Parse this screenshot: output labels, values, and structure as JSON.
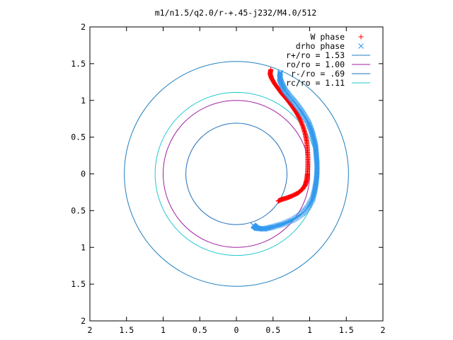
{
  "chart_data": {
    "type": "scatter",
    "title": "m1/n1.5/q2.0/r-+.45-j232/M4.0/512",
    "xlabel": "",
    "ylabel": "",
    "xlim": [
      -2,
      2
    ],
    "ylim": [
      -2,
      2
    ],
    "x_tick_values": [
      -2,
      -1.5,
      -1,
      -0.5,
      0,
      0.5,
      1,
      1.5,
      2
    ],
    "x_tick_labels": [
      "2",
      "1.5",
      "1",
      "0.5",
      "0",
      "0.5",
      "1",
      "1.5",
      "2"
    ],
    "y_tick_values": [
      2,
      1.5,
      1,
      0.5,
      0,
      -0.5,
      -1,
      -1.5,
      -2
    ],
    "y_tick_labels": [
      "2",
      "1.5",
      "1",
      "0.5",
      "0",
      "0.5",
      "1",
      "1.5",
      "2"
    ],
    "grid": false,
    "legend_position": "top-right",
    "series": [
      {
        "name": "W phase",
        "kind": "points",
        "marker": "+",
        "color": "#ff0000",
        "points": [
          [
            0.47,
            1.42
          ],
          [
            0.46,
            1.36
          ],
          [
            0.48,
            1.3
          ],
          [
            0.52,
            1.23
          ],
          [
            0.57,
            1.16
          ],
          [
            0.63,
            1.08
          ],
          [
            0.7,
            1.0
          ],
          [
            0.76,
            0.92
          ],
          [
            0.82,
            0.83
          ],
          [
            0.87,
            0.74
          ],
          [
            0.91,
            0.64
          ],
          [
            0.94,
            0.54
          ],
          [
            0.96,
            0.44
          ],
          [
            0.97,
            0.33
          ],
          [
            0.975,
            0.22
          ],
          [
            0.975,
            0.11
          ],
          [
            0.97,
            0.0
          ],
          [
            0.96,
            -0.08
          ],
          [
            0.94,
            -0.15
          ],
          [
            0.9,
            -0.21
          ],
          [
            0.84,
            -0.26
          ],
          [
            0.76,
            -0.3
          ],
          [
            0.68,
            -0.33
          ],
          [
            0.61,
            -0.35
          ],
          [
            0.57,
            -0.37
          ]
        ]
      },
      {
        "name": "drho phase",
        "kind": "points",
        "marker": "x",
        "color": "#3399ee",
        "points": [
          [
            0.6,
            1.38
          ],
          [
            0.59,
            1.3
          ],
          [
            0.62,
            1.22
          ],
          [
            0.66,
            1.14
          ],
          [
            0.72,
            1.06
          ],
          [
            0.79,
            0.98
          ],
          [
            0.86,
            0.89
          ],
          [
            0.92,
            0.8
          ],
          [
            0.98,
            0.7
          ],
          [
            1.02,
            0.6
          ],
          [
            1.05,
            0.5
          ],
          [
            1.08,
            0.38
          ],
          [
            1.09,
            0.26
          ],
          [
            1.1,
            0.14
          ],
          [
            1.1,
            0.02
          ],
          [
            1.09,
            -0.1
          ],
          [
            1.07,
            -0.22
          ],
          [
            1.04,
            -0.34
          ],
          [
            0.98,
            -0.45
          ],
          [
            0.9,
            -0.54
          ],
          [
            0.78,
            -0.62
          ],
          [
            0.64,
            -0.68
          ],
          [
            0.5,
            -0.72
          ],
          [
            0.38,
            -0.75
          ],
          [
            0.28,
            -0.74
          ],
          [
            0.23,
            -0.7
          ]
        ]
      },
      {
        "name": "r+/ro = 1.53",
        "kind": "circle",
        "radius": 1.53,
        "color": "#1f7fbf"
      },
      {
        "name": "ro/ro = 1.00",
        "kind": "circle",
        "radius": 1.0,
        "color": "#a020a0"
      },
      {
        "name": "r-/ro = .69",
        "kind": "circle",
        "radius": 0.69,
        "color": "#1f6fb8"
      },
      {
        "name": "rc/ro = 1.11",
        "kind": "circle",
        "radius": 1.11,
        "color": "#20c8d0"
      }
    ]
  }
}
